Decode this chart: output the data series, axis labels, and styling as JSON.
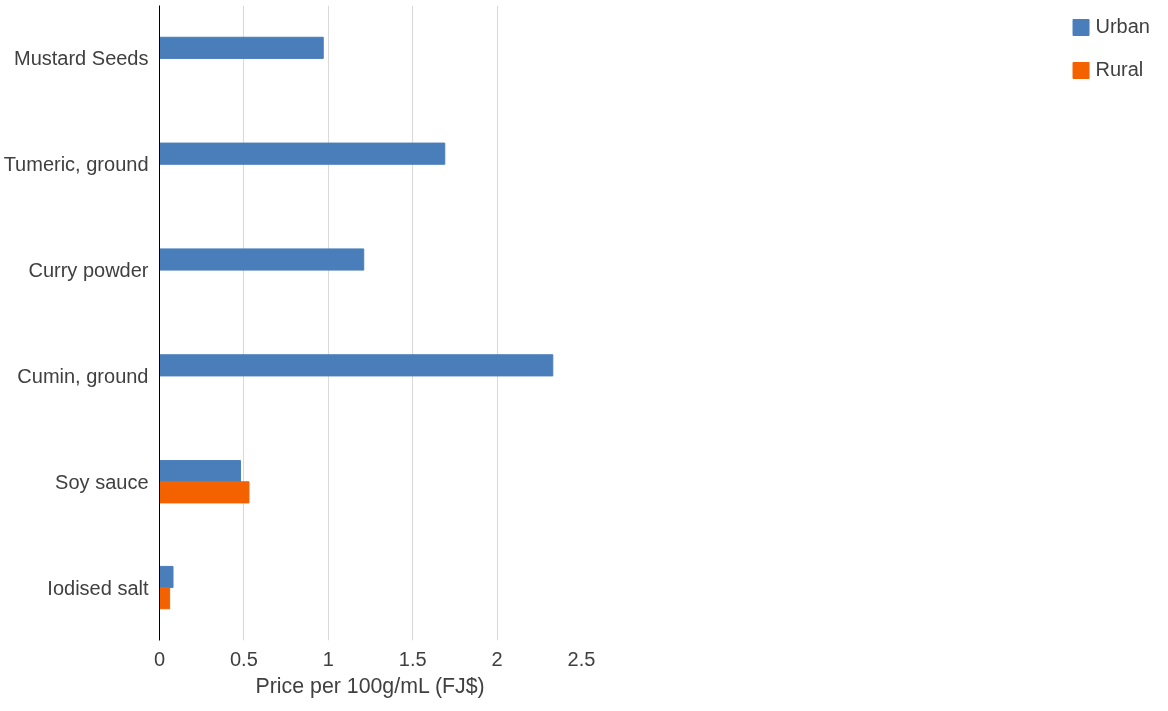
{
  "chart_data": {
    "type": "bar",
    "orientation": "horizontal",
    "xlabel": "Price per 100g/mL (FJ$)",
    "categories": [
      "Mustard Seeds",
      "Tumeric, ground",
      "Curry powder",
      "Cumin, ground",
      "Soy sauce",
      "Iodised salt"
    ],
    "series": [
      {
        "name": "Urban",
        "color": "#4a7ebb",
        "values": [
          0.97,
          1.69,
          1.21,
          2.33,
          0.48,
          0.08
        ]
      },
      {
        "name": "Rural",
        "color": "#f46200",
        "values": [
          null,
          null,
          null,
          null,
          0.53,
          0.06
        ]
      }
    ],
    "xlim": [
      0,
      2.5
    ],
    "xticks": [
      0,
      0.5,
      1,
      1.5,
      2,
      2.5
    ],
    "grid": "x",
    "legend": "right"
  }
}
